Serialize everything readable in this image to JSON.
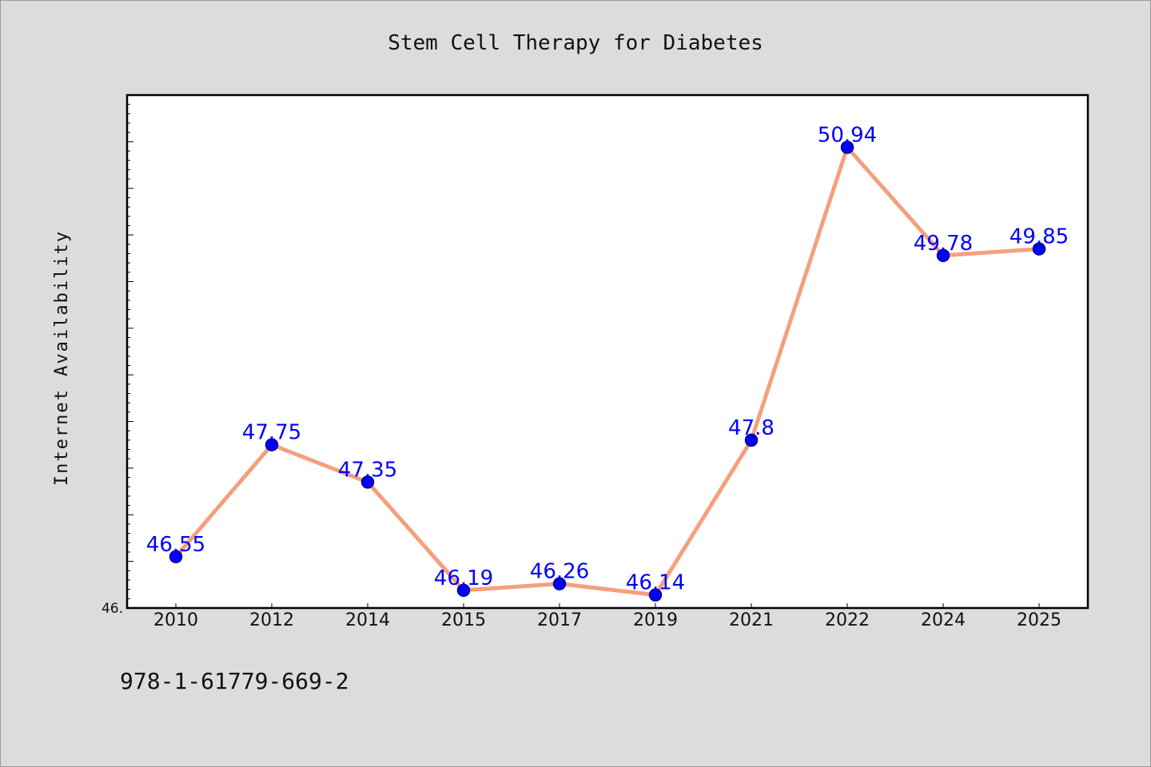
{
  "chart_data": {
    "type": "line",
    "title": "Stem Cell Therapy for Diabetes",
    "xlabel": "",
    "ylabel": "Internet Availability",
    "categories": [
      "2010",
      "2012",
      "2014",
      "2015",
      "2017",
      "2019",
      "2021",
      "2022",
      "2024",
      "2025"
    ],
    "series": [
      {
        "values": [
          46.55,
          47.75,
          47.35,
          46.19,
          46.26,
          46.14,
          47.8,
          50.94,
          49.78,
          49.85
        ],
        "labels": [
          "46.55",
          "47.75",
          "47.35",
          "46.19",
          "46.26",
          "46.14",
          "47.8",
          "50.94",
          "49.78",
          "49.85"
        ]
      }
    ],
    "ylim": [
      46.0,
      51.5
    ],
    "ytick_labels": [
      "46."
    ],
    "grid": false,
    "legend": "none",
    "colors": {
      "line": "#f5a07c",
      "marker": "#0000ff",
      "marker_edge": "#00008b",
      "data_label": "#0000ff",
      "plot_background": "#ffffff",
      "figure_background": "#dcdcdc"
    }
  },
  "footer": {
    "isbn": "978-1-61779-669-2"
  }
}
